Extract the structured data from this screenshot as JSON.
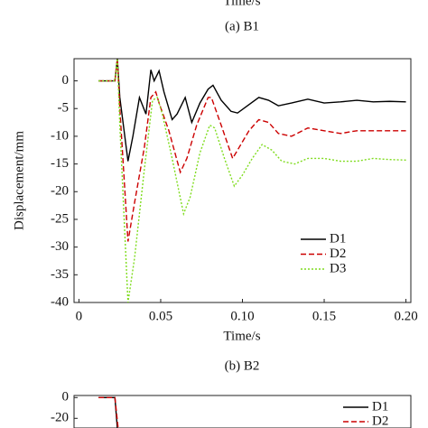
{
  "above": {
    "xlabel": "Time/s",
    "caption": "(a) B1"
  },
  "chart_data": [
    {
      "type": "line",
      "xlabel": "Time/s",
      "ylabel": "Displacement/mm",
      "caption": "(b) B2",
      "xlim": [
        -0.003,
        0.203
      ],
      "ylim": [
        -40,
        4
      ],
      "xticks": [
        0,
        0.05,
        {
          "value": 0.1,
          "label": "0.10"
        },
        0.15,
        {
          "value": 0.2,
          "label": "0.20"
        }
      ],
      "yticks": [
        0,
        -5,
        -10,
        -15,
        -20,
        -25,
        -30,
        -35,
        -40
      ],
      "legend": "lower right",
      "series": [
        {
          "name": "D1",
          "color": "#000000",
          "dash": "solid",
          "x": [
            0.012,
            0.02,
            0.022,
            0.0235,
            0.025,
            0.03,
            0.033,
            0.037,
            0.041,
            0.044,
            0.046,
            0.049,
            0.052,
            0.057,
            0.06,
            0.065,
            0.069,
            0.074,
            0.079,
            0.082,
            0.087,
            0.093,
            0.097,
            0.103,
            0.11,
            0.116,
            0.122,
            0.13,
            0.14,
            0.15,
            0.16,
            0.17,
            0.18,
            0.19,
            0.2
          ],
          "values": [
            0,
            0,
            0,
            4,
            -3,
            -14.5,
            -10,
            -3,
            -6,
            2,
            0,
            1.8,
            -2,
            -7,
            -6,
            -3,
            -7.5,
            -4,
            -1.5,
            -0.8,
            -3.5,
            -5.5,
            -5.8,
            -4.5,
            -3,
            -3.5,
            -4.5,
            -4,
            -3.3,
            -4,
            -3.8,
            -3.5,
            -3.8,
            -3.7,
            -3.8
          ]
        },
        {
          "name": "D2",
          "color": "#cc0000",
          "dash": "dashed",
          "x": [
            0.012,
            0.02,
            0.022,
            0.0235,
            0.025,
            0.03,
            0.034,
            0.04,
            0.044,
            0.047,
            0.049,
            0.055,
            0.062,
            0.066,
            0.072,
            0.079,
            0.081,
            0.087,
            0.094,
            0.098,
            0.104,
            0.11,
            0.116,
            0.122,
            0.13,
            0.14,
            0.15,
            0.16,
            0.17,
            0.18,
            0.19,
            0.2
          ],
          "values": [
            0,
            0,
            0,
            4,
            -5,
            -29,
            -22,
            -12,
            -3,
            -2,
            -4,
            -9,
            -16.5,
            -14,
            -8,
            -3,
            -3,
            -8,
            -14,
            -12,
            -9,
            -7,
            -7.5,
            -9.5,
            -10,
            -8.5,
            -9,
            -9.5,
            -9,
            -9,
            -9,
            -9
          ]
        },
        {
          "name": "D3",
          "color": "#7fdc1e",
          "dash": "dotted",
          "x": [
            0.012,
            0.02,
            0.022,
            0.0235,
            0.025,
            0.03,
            0.034,
            0.04,
            0.045,
            0.048,
            0.051,
            0.057,
            0.064,
            0.068,
            0.074,
            0.08,
            0.083,
            0.089,
            0.095,
            0.1,
            0.106,
            0.112,
            0.118,
            0.124,
            0.132,
            0.14,
            0.15,
            0.16,
            0.17,
            0.18,
            0.19,
            0.2
          ],
          "values": [
            0,
            0,
            0,
            4,
            -8,
            -40,
            -32,
            -16,
            -3.5,
            -3,
            -6,
            -14,
            -24,
            -21,
            -13,
            -8,
            -8.5,
            -14,
            -19,
            -17,
            -14,
            -11.5,
            -12.5,
            -14.5,
            -15,
            -14,
            -14,
            -14.5,
            -14.5,
            -14,
            -14.2,
            -14.3
          ]
        }
      ]
    },
    {
      "type": "line",
      "xlim": [
        -0.003,
        0.203
      ],
      "ylim": [
        -30,
        2
      ],
      "yticks": [
        0,
        -20
      ],
      "legend": "upper right",
      "series": [
        {
          "name": "D1",
          "color": "#000000",
          "dash": "solid",
          "x": [
            0.012,
            0.022,
            0.0235
          ],
          "values": [
            0,
            0,
            -30
          ]
        },
        {
          "name": "D2",
          "color": "#cc0000",
          "dash": "dashed",
          "x": [
            0.012,
            0.022,
            0.024
          ],
          "values": [
            0,
            0,
            -30
          ]
        }
      ]
    }
  ]
}
